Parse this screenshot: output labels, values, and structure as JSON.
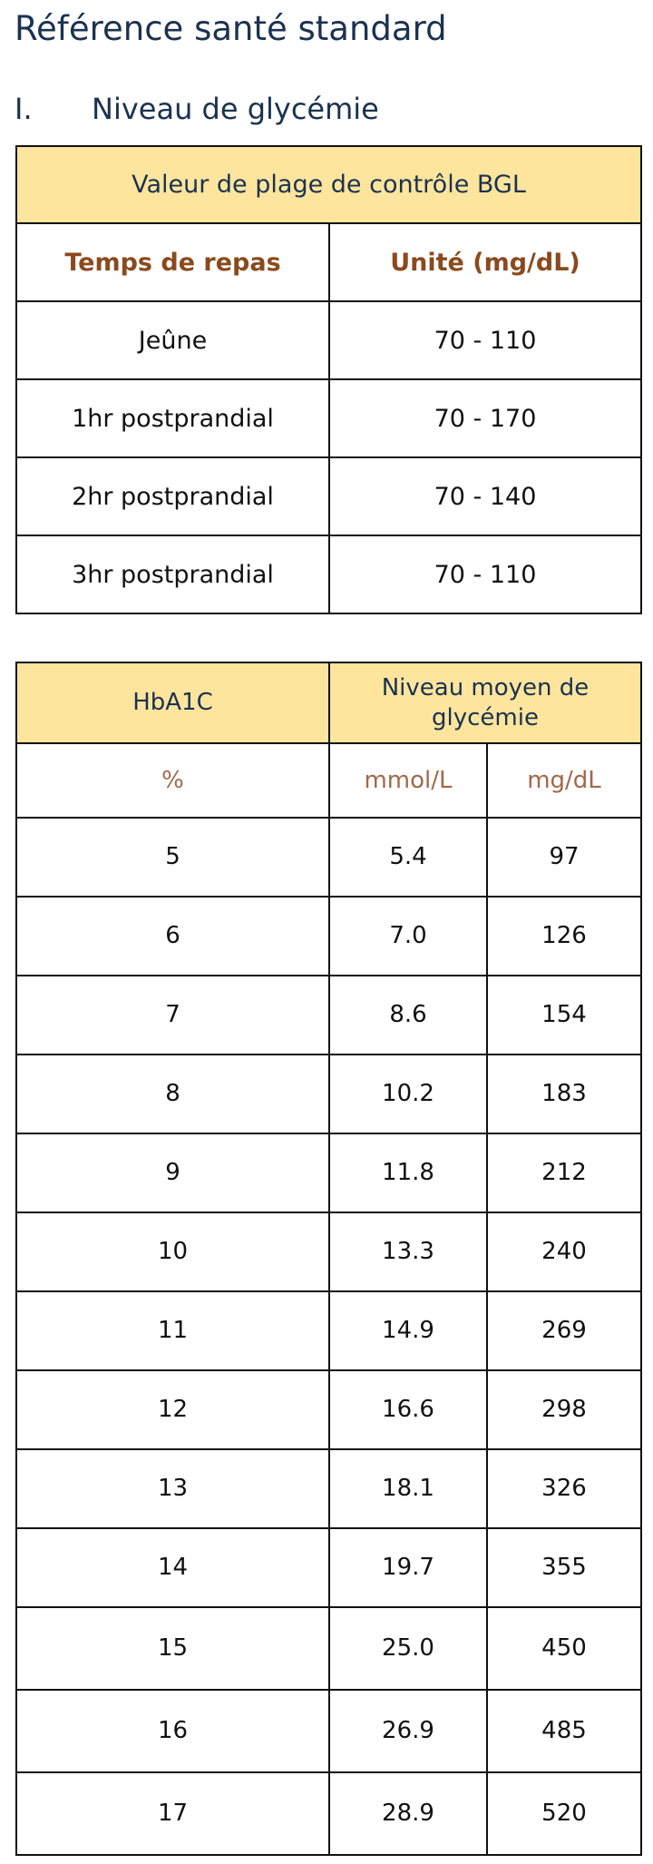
{
  "page": {
    "title": "Référence santé standard",
    "section_number": "I.",
    "section_title": "Niveau de glycémie"
  },
  "bgl_table": {
    "title": "Valeur de plage de contrôle BGL",
    "col1_header": "Temps de repas",
    "col2_header": "Unité (mg/dL)",
    "rows": [
      {
        "meal": "Jeûne",
        "range": "70 - 110"
      },
      {
        "meal": "1hr postprandial",
        "range": "70 - 170"
      },
      {
        "meal": "2hr postprandial",
        "range": "70 - 140"
      },
      {
        "meal": "3hr postprandial",
        "range": "70 - 110"
      }
    ]
  },
  "hba1c_table": {
    "col1_header": "HbA1C",
    "col2_header": "Niveau moyen de glycémie",
    "sub1": "%",
    "sub2": "mmol/L",
    "sub3": "mg/dL",
    "rows": [
      {
        "pct": "5",
        "mmol": "5.4",
        "mg": "97"
      },
      {
        "pct": "6",
        "mmol": "7.0",
        "mg": "126"
      },
      {
        "pct": "7",
        "mmol": "8.6",
        "mg": "154"
      },
      {
        "pct": "8",
        "mmol": "10.2",
        "mg": "183"
      },
      {
        "pct": "9",
        "mmol": "11.8",
        "mg": "212"
      },
      {
        "pct": "10",
        "mmol": "13.3",
        "mg": "240"
      },
      {
        "pct": "11",
        "mmol": "14.9",
        "mg": "269"
      },
      {
        "pct": "12",
        "mmol": "16.6",
        "mg": "298"
      },
      {
        "pct": "13",
        "mmol": "18.1",
        "mg": "326"
      },
      {
        "pct": "14",
        "mmol": "19.7",
        "mg": "355"
      },
      {
        "pct": "15",
        "mmol": "25.0",
        "mg": "450"
      },
      {
        "pct": "16",
        "mmol": "26.9",
        "mg": "485"
      },
      {
        "pct": "17",
        "mmol": "28.9",
        "mg": "520"
      }
    ]
  }
}
